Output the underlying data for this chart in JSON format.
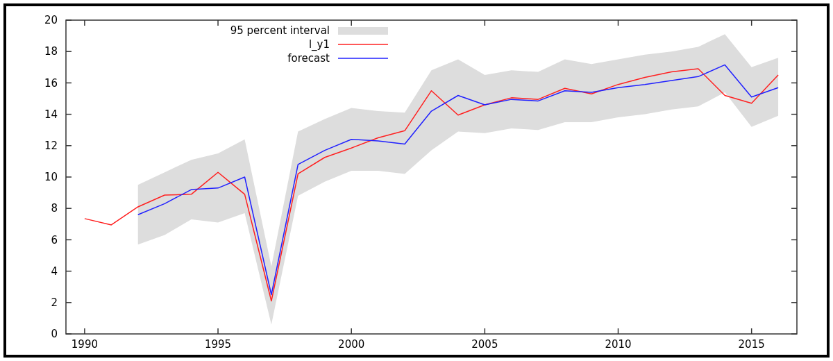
{
  "chart_data": {
    "type": "line",
    "xlim": [
      1989.3,
      2016.7
    ],
    "ylim": [
      0,
      20
    ],
    "xticks": [
      1990,
      1995,
      2000,
      2005,
      2010,
      2015
    ],
    "yticks": [
      0,
      2,
      4,
      6,
      8,
      10,
      12,
      14,
      16,
      18,
      20
    ],
    "legend": "top left",
    "grid": false,
    "series": [
      {
        "name": "95 percent interval",
        "color": "#dddddd",
        "values": [
          null,
          null,
          null,
          null,
          null,
          null,
          null,
          null,
          null,
          null,
          null,
          null,
          null,
          null,
          null,
          null,
          null,
          null,
          null,
          null,
          null,
          null,
          null,
          null,
          null
        ],
        "x": [
          1992,
          1993,
          1994,
          1995,
          1996,
          1997,
          1998,
          1999,
          2000,
          2001,
          2002,
          2003,
          2004,
          2005,
          2006,
          2007,
          2008,
          2009,
          2010,
          2011,
          2012,
          2013,
          2014,
          2015,
          2016
        ],
        "lower": [
          5.7,
          6.3,
          7.3,
          7.1,
          7.7,
          0.6,
          8.8,
          9.7,
          10.4,
          10.4,
          10.2,
          11.7,
          12.9,
          12.8,
          13.1,
          13.0,
          13.5,
          13.5,
          13.8,
          14.0,
          14.3,
          14.5,
          15.4,
          13.2,
          13.9
        ],
        "upper": [
          9.5,
          10.3,
          11.1,
          11.5,
          12.4,
          4.3,
          12.9,
          13.7,
          14.4,
          14.2,
          14.1,
          16.8,
          17.5,
          16.5,
          16.8,
          16.7,
          17.5,
          17.2,
          17.5,
          17.8,
          18.0,
          18.3,
          19.1,
          17.0,
          17.6
        ]
      },
      {
        "name": "l_y1",
        "color": "#ff2020",
        "x": [
          1990,
          1991,
          1992,
          1993,
          1994,
          1995,
          1996,
          1997,
          1998,
          1999,
          2000,
          2001,
          2002,
          2003,
          2004,
          2005,
          2006,
          2007,
          2008,
          2009,
          2010,
          2011,
          2012,
          2013,
          2014,
          2015,
          2016
        ],
        "values": [
          7.35,
          6.95,
          8.1,
          8.85,
          8.9,
          10.3,
          8.9,
          2.1,
          10.2,
          11.25,
          11.85,
          12.5,
          12.95,
          15.5,
          13.95,
          14.6,
          15.05,
          14.95,
          15.65,
          15.3,
          15.9,
          16.35,
          16.7,
          16.9,
          15.2,
          14.7,
          16.5
        ]
      },
      {
        "name": "forecast",
        "color": "#2020ff",
        "x": [
          1992,
          1993,
          1994,
          1995,
          1996,
          1997,
          1998,
          1999,
          2000,
          2001,
          2002,
          2003,
          2004,
          2005,
          2006,
          2007,
          2008,
          2009,
          2010,
          2011,
          2012,
          2013,
          2014,
          2015,
          2016
        ],
        "values": [
          7.6,
          8.3,
          9.2,
          9.3,
          10.0,
          2.5,
          10.8,
          11.7,
          12.4,
          12.3,
          12.1,
          14.2,
          15.2,
          14.6,
          14.95,
          14.85,
          15.5,
          15.4,
          15.7,
          15.9,
          16.15,
          16.4,
          17.15,
          15.1,
          15.7
        ]
      }
    ]
  }
}
